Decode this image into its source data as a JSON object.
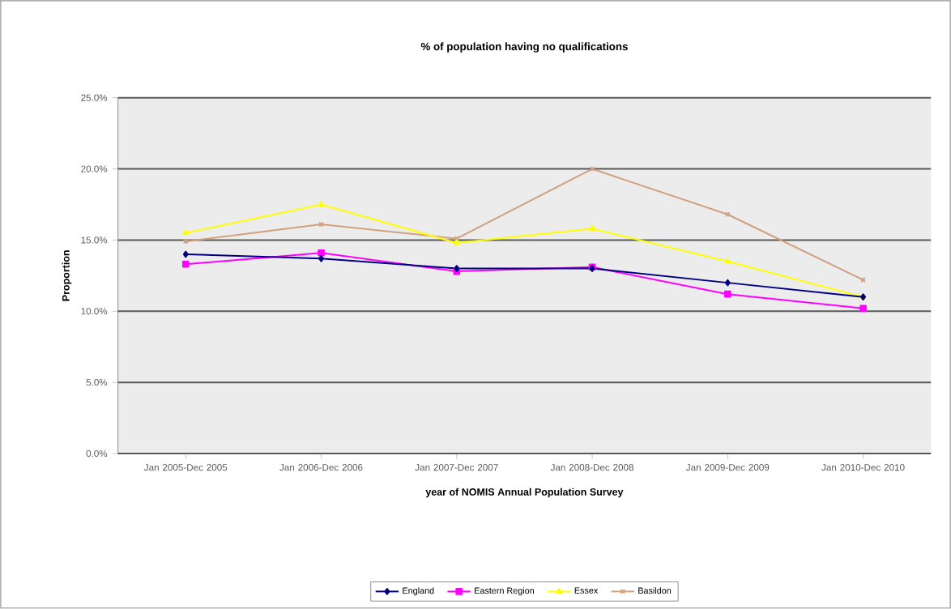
{
  "chart_data": {
    "type": "line",
    "title": "% of population having no qualifications",
    "xlabel": "year of NOMIS Annual Population Survey",
    "ylabel": "Proportion",
    "categories": [
      "Jan 2005-Dec 2005",
      "Jan 2006-Dec 2006",
      "Jan 2007-Dec 2007",
      "Jan 2008-Dec 2008",
      "Jan 2009-Dec 2009",
      "Jan 2010-Dec 2010"
    ],
    "series": [
      {
        "name": "England",
        "color": "#000080",
        "marker": "diamond",
        "values": [
          14.0,
          13.7,
          13.0,
          13.0,
          12.0,
          11.0
        ]
      },
      {
        "name": "Eastern Region",
        "color": "#ff00ff",
        "marker": "square",
        "values": [
          13.3,
          14.1,
          12.8,
          13.1,
          11.2,
          10.2
        ]
      },
      {
        "name": "Essex",
        "color": "#ffff00",
        "marker": "triangle",
        "values": [
          15.5,
          17.5,
          14.8,
          15.8,
          13.5,
          11.0
        ]
      },
      {
        "name": "Basildon",
        "color": "#d0a080",
        "marker": "cross",
        "values": [
          14.9,
          16.1,
          15.1,
          20.0,
          16.8,
          12.2
        ]
      }
    ],
    "ylim": [
      0,
      25
    ],
    "yticks": [
      {
        "value": 0,
        "label": "0.0%"
      },
      {
        "value": 5,
        "label": "5.0%"
      },
      {
        "value": 10,
        "label": "10.0%"
      },
      {
        "value": 15,
        "label": "15.0%"
      },
      {
        "value": 20,
        "label": "20.0%"
      },
      {
        "value": 25,
        "label": "25.0%"
      }
    ],
    "grid": "y",
    "legend": "bottom"
  }
}
